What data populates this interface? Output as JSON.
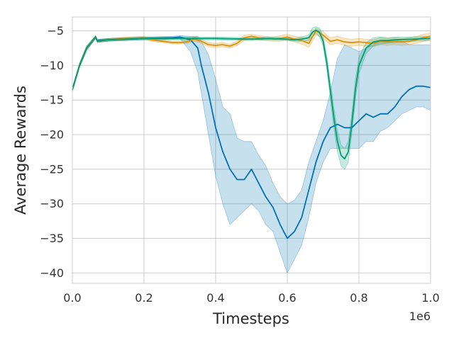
{
  "chart_data": {
    "type": "line",
    "title": "",
    "xlabel": "Timesteps",
    "ylabel": "Average Rewards",
    "x_offset_label": "1e6",
    "xlim": [
      0.0,
      1.0
    ],
    "ylim": [
      -41.5,
      -3.0
    ],
    "xticks": [
      0.0,
      0.2,
      0.4,
      0.6,
      0.8,
      1.0
    ],
    "xtick_labels": [
      "0.0",
      "0.2",
      "0.4",
      "0.6",
      "0.8",
      "1.0"
    ],
    "yticks": [
      -5,
      -10,
      -15,
      -20,
      -25,
      -30,
      -35,
      -40
    ],
    "ytick_labels": [
      "−5",
      "−10",
      "−15",
      "−20",
      "−25",
      "−30",
      "−35",
      "−40"
    ],
    "grid": true,
    "legend": "none",
    "series": [
      {
        "color": "#0173b2",
        "band_opacity": 0.22,
        "x": [
          0.0,
          0.02,
          0.04,
          0.065,
          0.07,
          0.1,
          0.2,
          0.28,
          0.3,
          0.33,
          0.35,
          0.36,
          0.38,
          0.4,
          0.42,
          0.44,
          0.46,
          0.48,
          0.5,
          0.52,
          0.54,
          0.56,
          0.58,
          0.6,
          0.62,
          0.64,
          0.66,
          0.68,
          0.7,
          0.72,
          0.74,
          0.76,
          0.78,
          0.8,
          0.82,
          0.84,
          0.86,
          0.88,
          0.9,
          0.92,
          0.94,
          0.96,
          0.98,
          1.0
        ],
        "y": [
          -13.5,
          -10.0,
          -7.5,
          -5.9,
          -6.4,
          -6.3,
          -6.1,
          -6.0,
          -5.9,
          -6.3,
          -7.5,
          -10.0,
          -14.0,
          -19.0,
          -22.5,
          -25.0,
          -26.5,
          -26.5,
          -25.0,
          -27.0,
          -29.0,
          -30.5,
          -33.0,
          -35.0,
          -34.0,
          -32.0,
          -28.0,
          -24.0,
          -21.0,
          -19.0,
          -18.5,
          -19.0,
          -19.0,
          -18.0,
          -17.0,
          -17.5,
          -17.0,
          -17.0,
          -16.0,
          -14.5,
          -13.5,
          -13.0,
          -13.0,
          -13.2
        ],
        "lower": [
          -13.8,
          -10.3,
          -7.8,
          -6.1,
          -6.6,
          -6.5,
          -6.3,
          -6.2,
          -6.1,
          -8.0,
          -11.0,
          -14.0,
          -20.0,
          -26.0,
          -30.0,
          -33.0,
          -32.0,
          -31.0,
          -30.0,
          -31.0,
          -33.0,
          -34.0,
          -37.0,
          -40.0,
          -38.0,
          -36.0,
          -32.0,
          -27.0,
          -24.0,
          -22.0,
          -22.0,
          -22.0,
          -22.0,
          -22.0,
          -21.0,
          -21.0,
          -19.5,
          -19.0,
          -18.0,
          -17.0,
          -16.5,
          -16.0,
          -16.0,
          -16.5
        ],
        "upper": [
          -13.2,
          -9.7,
          -7.2,
          -5.7,
          -6.2,
          -6.1,
          -5.9,
          -5.8,
          -5.7,
          -5.8,
          -5.8,
          -6.5,
          -8.5,
          -12.0,
          -16.0,
          -17.0,
          -20.5,
          -21.0,
          -21.0,
          -23.0,
          -24.5,
          -27.0,
          -29.0,
          -30.0,
          -29.5,
          -28.0,
          -24.0,
          -21.0,
          -18.0,
          -14.0,
          -9.0,
          -7.0,
          -7.5,
          -8.0,
          -7.5,
          -7.0,
          -6.5,
          -6.5,
          -6.5,
          -6.5,
          -7.0,
          -7.0,
          -7.0,
          -7.0
        ]
      },
      {
        "color": "#de8f05",
        "band_opacity": 0.22,
        "x": [
          0.0,
          0.02,
          0.04,
          0.065,
          0.07,
          0.1,
          0.15,
          0.2,
          0.22,
          0.25,
          0.28,
          0.3,
          0.32,
          0.34,
          0.36,
          0.38,
          0.4,
          0.42,
          0.44,
          0.46,
          0.48,
          0.5,
          0.52,
          0.54,
          0.56,
          0.58,
          0.6,
          0.62,
          0.64,
          0.66,
          0.68,
          0.7,
          0.72,
          0.74,
          0.76,
          0.78,
          0.8,
          0.82,
          0.84,
          0.86,
          0.88,
          0.9,
          0.92,
          0.94,
          0.96,
          0.98,
          1.0
        ],
        "y": [
          -13.5,
          -10.0,
          -7.5,
          -5.9,
          -6.5,
          -6.3,
          -6.1,
          -6.0,
          -6.3,
          -6.5,
          -6.7,
          -6.7,
          -6.6,
          -6.2,
          -6.5,
          -7.0,
          -7.1,
          -7.0,
          -7.2,
          -6.8,
          -6.0,
          -5.8,
          -6.0,
          -6.1,
          -6.2,
          -6.1,
          -5.9,
          -6.2,
          -6.4,
          -6.8,
          -5.0,
          -5.6,
          -6.5,
          -6.3,
          -6.6,
          -6.7,
          -6.6,
          -6.7,
          -6.8,
          -6.5,
          -6.6,
          -6.5,
          -6.6,
          -6.5,
          -6.3,
          -6.0,
          -5.8
        ],
        "lower": [
          -13.8,
          -10.3,
          -7.8,
          -6.1,
          -6.7,
          -6.5,
          -6.3,
          -6.2,
          -6.5,
          -6.7,
          -6.9,
          -6.9,
          -6.8,
          -6.5,
          -6.8,
          -7.3,
          -7.4,
          -7.3,
          -7.5,
          -7.1,
          -6.4,
          -6.1,
          -6.3,
          -6.4,
          -6.5,
          -6.5,
          -6.3,
          -6.6,
          -6.9,
          -7.4,
          -5.6,
          -6.1,
          -7.0,
          -6.8,
          -7.1,
          -7.2,
          -7.1,
          -7.2,
          -7.3,
          -7.0,
          -7.1,
          -7.0,
          -7.1,
          -7.0,
          -6.8,
          -6.5,
          -6.3
        ],
        "upper": [
          -13.2,
          -9.7,
          -7.2,
          -5.7,
          -6.3,
          -6.1,
          -5.9,
          -5.8,
          -6.1,
          -6.3,
          -6.5,
          -6.5,
          -6.4,
          -5.9,
          -6.2,
          -6.7,
          -6.8,
          -6.7,
          -6.9,
          -6.5,
          -5.6,
          -5.5,
          -5.7,
          -5.8,
          -5.9,
          -5.7,
          -5.5,
          -5.8,
          -5.9,
          -6.2,
          -4.6,
          -5.1,
          -6.0,
          -5.8,
          -6.1,
          -6.2,
          -6.1,
          -6.2,
          -6.3,
          -6.0,
          -6.1,
          -6.0,
          -6.1,
          -6.0,
          -5.8,
          -5.5,
          -5.3
        ]
      },
      {
        "color": "#029e73",
        "band_opacity": 0.22,
        "x": [
          0.0,
          0.02,
          0.04,
          0.065,
          0.07,
          0.1,
          0.2,
          0.3,
          0.4,
          0.5,
          0.55,
          0.6,
          0.62,
          0.64,
          0.66,
          0.67,
          0.68,
          0.69,
          0.7,
          0.71,
          0.72,
          0.73,
          0.74,
          0.75,
          0.76,
          0.77,
          0.78,
          0.79,
          0.8,
          0.82,
          0.84,
          0.86,
          0.88,
          0.9,
          0.95,
          1.0
        ],
        "y": [
          -13.5,
          -10.0,
          -7.5,
          -5.9,
          -6.5,
          -6.3,
          -6.1,
          -6.1,
          -6.1,
          -6.2,
          -6.1,
          -6.2,
          -6.3,
          -6.2,
          -6.0,
          -5.2,
          -4.9,
          -5.2,
          -6.5,
          -9.5,
          -13.5,
          -17.5,
          -21.0,
          -23.0,
          -23.5,
          -22.5,
          -18.5,
          -13.5,
          -10.0,
          -7.5,
          -6.6,
          -6.4,
          -6.4,
          -6.3,
          -6.2,
          -6.1
        ],
        "lower": [
          -13.8,
          -10.3,
          -7.8,
          -6.1,
          -6.7,
          -6.5,
          -6.3,
          -6.3,
          -6.3,
          -6.4,
          -6.3,
          -6.4,
          -6.5,
          -6.5,
          -6.4,
          -5.8,
          -5.4,
          -5.8,
          -7.2,
          -10.5,
          -14.8,
          -19.0,
          -22.5,
          -24.5,
          -25.0,
          -24.0,
          -20.0,
          -15.0,
          -11.2,
          -8.3,
          -7.2,
          -6.9,
          -6.8,
          -6.7,
          -6.5,
          -6.4
        ],
        "upper": [
          -13.2,
          -9.7,
          -7.2,
          -5.7,
          -6.3,
          -6.1,
          -5.9,
          -5.9,
          -5.9,
          -6.0,
          -5.9,
          -6.0,
          -6.1,
          -5.9,
          -5.6,
          -4.6,
          -4.4,
          -4.6,
          -5.8,
          -8.5,
          -12.2,
          -16.0,
          -19.5,
          -21.5,
          -22.0,
          -21.0,
          -17.0,
          -12.0,
          -8.8,
          -6.7,
          -6.0,
          -5.9,
          -6.0,
          -5.9,
          -5.9,
          -5.8
        ]
      }
    ]
  }
}
